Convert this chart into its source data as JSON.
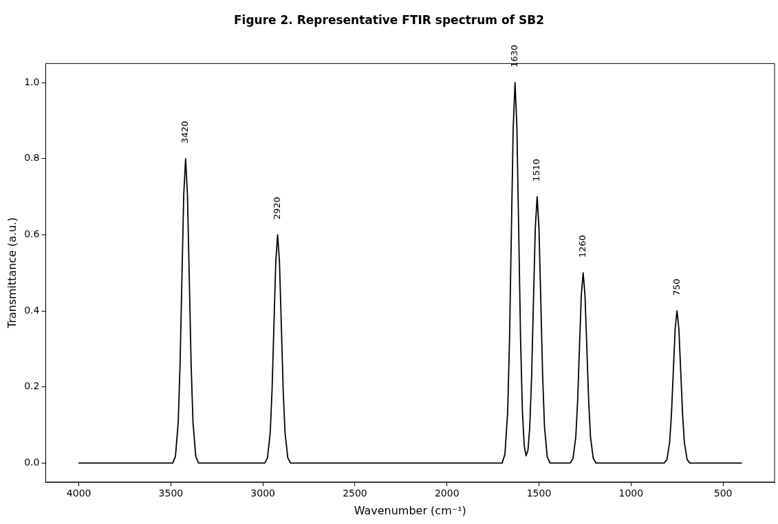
{
  "chart_data": {
    "type": "line",
    "title": "Figure 2. Representative FTIR spectrum of SB2",
    "xlabel": "Wavenumber (cm⁻¹)",
    "ylabel": "Transmittance (a.u.)",
    "series": [
      {
        "color": "#000000",
        "x": [
          4000,
          3490,
          3475,
          3460,
          3450,
          3440,
          3430,
          3420,
          3410,
          3400,
          3390,
          3380,
          3365,
          3350,
          2990,
          2975,
          2960,
          2950,
          2940,
          2930,
          2920,
          2910,
          2900,
          2890,
          2880,
          2865,
          2850,
          1700,
          1685,
          1670,
          1660,
          1650,
          1640,
          1630,
          1620,
          1610,
          1600,
          1590,
          1580,
          1570,
          1560,
          1550,
          1540,
          1530,
          1520,
          1510,
          1500,
          1490,
          1480,
          1470,
          1455,
          1440,
          1330,
          1315,
          1300,
          1290,
          1280,
          1270,
          1260,
          1250,
          1240,
          1230,
          1220,
          1205,
          1190,
          820,
          805,
          790,
          780,
          770,
          760,
          750,
          740,
          730,
          720,
          710,
          695,
          680,
          400
        ],
        "values": [
          0,
          0,
          0.018,
          0.108,
          0.26,
          0.486,
          0.706,
          0.8,
          0.706,
          0.486,
          0.26,
          0.108,
          0.018,
          0,
          0,
          0.014,
          0.081,
          0.195,
          0.364,
          0.529,
          0.6,
          0.529,
          0.364,
          0.195,
          0.081,
          0.014,
          0,
          0,
          0.023,
          0.135,
          0.325,
          0.607,
          0.882,
          1,
          0.882,
          0.607,
          0.325,
          0.135,
          0.045,
          0.019,
          0.033,
          0.095,
          0.228,
          0.425,
          0.617,
          0.7,
          0.617,
          0.425,
          0.228,
          0.095,
          0.016,
          0,
          0,
          0.012,
          0.068,
          0.163,
          0.304,
          0.441,
          0.5,
          0.441,
          0.304,
          0.163,
          0.068,
          0.012,
          0,
          0,
          0.009,
          0.054,
          0.13,
          0.243,
          0.353,
          0.4,
          0.353,
          0.243,
          0.13,
          0.054,
          0.009,
          0,
          0
        ]
      }
    ],
    "xlim": [
      4180,
      220
    ],
    "xticks": [
      4000,
      3500,
      3000,
      2500,
      2000,
      1500,
      1000,
      500
    ],
    "ylim": [
      -0.05,
      1.05
    ],
    "yticks": [
      {
        "value": 0,
        "label": "0.0"
      },
      {
        "value": 0.2,
        "label": "0.2"
      },
      {
        "value": 0.4,
        "label": "0.4"
      },
      {
        "value": 0.6,
        "label": "0.6"
      },
      {
        "value": 0.8,
        "label": "0.8"
      },
      {
        "value": 1,
        "label": "1.0"
      }
    ],
    "annotations": [
      {
        "text": "3420",
        "x": 3420,
        "y": 0.8
      },
      {
        "text": "2920",
        "x": 2920,
        "y": 0.6
      },
      {
        "text": "1630",
        "x": 1630,
        "y": 1
      },
      {
        "text": "1510",
        "x": 1510,
        "y": 0.7
      },
      {
        "text": "1260",
        "x": 1260,
        "y": 0.5
      },
      {
        "text": "750",
        "x": 750,
        "y": 0.4
      }
    ],
    "grid": false,
    "legend": false,
    "marker": "none",
    "line_style": "solid"
  }
}
